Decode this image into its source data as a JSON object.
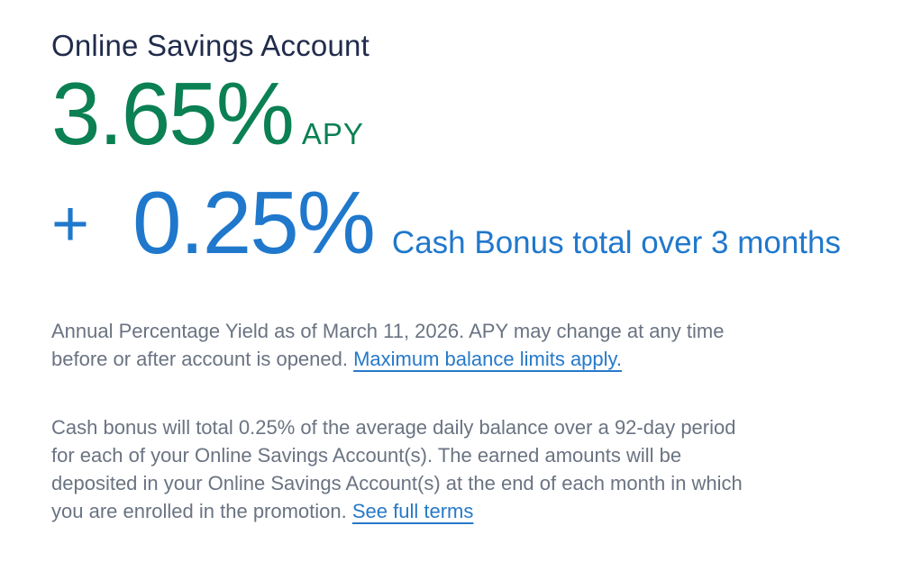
{
  "promo": {
    "title": "Online Savings Account",
    "apy": {
      "value": "3.65%",
      "unit": "APY",
      "color": "#0b8053"
    },
    "bonus": {
      "plus": "+",
      "value": "0.25%",
      "caption": "Cash Bonus total over 3 months",
      "color": "#2078cc"
    },
    "disclosures": [
      {
        "text": "Annual Percentage Yield as of March 11, 2026. APY may change at any time before or after account is opened. ",
        "link": "Maximum balance limits apply."
      },
      {
        "text": "Cash bonus will total 0.25% of the average daily balance over a 92-day period for each of your Online Savings Account(s). The earned amounts will be deposited in your Online Savings Account(s) at the end of each month in which you are enrolled in the promotion. ",
        "link": "See full terms"
      }
    ],
    "colors": {
      "title": "#212c4c",
      "body_text": "#6a7382",
      "link": "#2679c9",
      "background": "#ffffff"
    }
  }
}
